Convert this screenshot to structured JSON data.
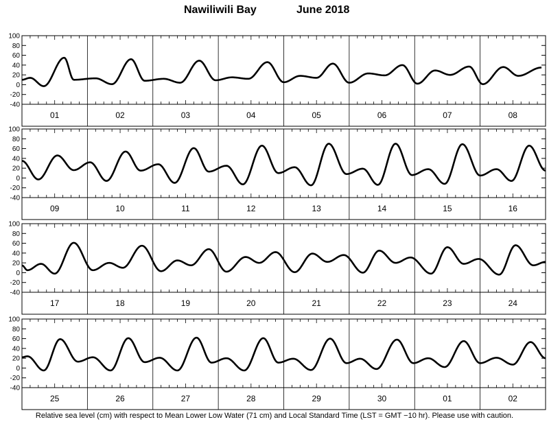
{
  "header": {
    "location": "Nawiliwili Bay",
    "month_year": "June   2018"
  },
  "footer": {
    "note": "Relative sea level (cm) with respect to Mean Lower Low Water (71 cm) and Local Standard Time (LST = GMT −10 hr). Please use with caution."
  },
  "chart_data": [
    {
      "type": "line",
      "title": "",
      "xlabel": "",
      "ylabel": "",
      "ylim": [
        -40,
        100
      ],
      "yticks": [
        -40,
        -20,
        0,
        20,
        40,
        60,
        80,
        100
      ],
      "grid": false,
      "day_labels": [
        "01",
        "02",
        "03",
        "04",
        "05",
        "06",
        "07",
        "08"
      ],
      "series": [
        {
          "x": [
            "01 00:00",
            "01 03:00",
            "01 08:00",
            "01 15:30",
            "01 19:00",
            "02 03:00",
            "02 09:00",
            "02 16:00",
            "02 21:00",
            "03 04:00",
            "03 10:00",
            "03 17:00",
            "03 23:00",
            "04 05:00",
            "04 11:00",
            "04 18:00",
            "05 00:00",
            "05 06:00",
            "05 12:00",
            "05 18:00",
            "06 00:00",
            "06 07:00",
            "06 13:00",
            "06 19:30",
            "07 01:00",
            "07 07:30",
            "07 13:00",
            "07 20:00",
            "08 01:00",
            "08 08:30",
            "08 14:00",
            "08 22:30"
          ],
          "y": [
            10,
            14,
            -3,
            55,
            10,
            13,
            1,
            52,
            8,
            12,
            4,
            49,
            9,
            15,
            12,
            46,
            5,
            18,
            14,
            43,
            4,
            23,
            19,
            40,
            2,
            29,
            20,
            37,
            1,
            36,
            18,
            35
          ]
        }
      ]
    },
    {
      "type": "line",
      "title": "",
      "xlabel": "",
      "ylabel": "",
      "ylim": [
        -40,
        100
      ],
      "yticks": [
        -40,
        -20,
        0,
        20,
        40,
        60,
        80,
        100
      ],
      "grid": false,
      "day_labels": [
        "09",
        "10",
        "11",
        "12",
        "13",
        "14",
        "15",
        "16"
      ],
      "series": [
        {
          "x": [
            "09 00:00",
            "09 06:00",
            "09 13:00",
            "09 19:00",
            "10 01:00",
            "10 07:00",
            "10 14:00",
            "10 19:30",
            "11 02:00",
            "11 08:00",
            "11 15:00",
            "11 20:30",
            "12 03:00",
            "12 09:00",
            "12 16:00",
            "12 22:00",
            "13 04:00",
            "13 10:00",
            "13 16:30",
            "13 23:00",
            "14 05:00",
            "14 10:30",
            "14 17:00",
            "14 23:00",
            "15 05:00",
            "15 11:00",
            "15 17:30",
            "16 00:00",
            "16 06:00",
            "16 11:30",
            "16 18:00",
            "16 23:59"
          ],
          "y": [
            35,
            -3,
            46,
            16,
            32,
            -6,
            54,
            15,
            28,
            -10,
            61,
            13,
            25,
            -13,
            66,
            10,
            22,
            -15,
            70,
            8,
            19,
            -14,
            70,
            6,
            18,
            -12,
            69,
            5,
            18,
            -6,
            66,
            15
          ]
        }
      ]
    },
    {
      "type": "line",
      "title": "",
      "xlabel": "",
      "ylabel": "",
      "ylim": [
        -40,
        100
      ],
      "yticks": [
        -40,
        -20,
        0,
        20,
        40,
        60,
        80,
        100
      ],
      "grid": false,
      "day_labels": [
        "17",
        "18",
        "19",
        "20",
        "21",
        "22",
        "23",
        "24"
      ],
      "series": [
        {
          "x": [
            "17 00:00",
            "17 02:00",
            "17 07:00",
            "17 12:00",
            "17 19:00",
            "18 02:00",
            "18 08:00",
            "18 13:00",
            "18 20:00",
            "19 03:00",
            "19 09:00",
            "19 14:00",
            "19 20:30",
            "20 03:00",
            "20 10:00",
            "20 15:00",
            "20 21:00",
            "21 04:00",
            "21 10:30",
            "21 16:00",
            "21 22:00",
            "22 05:00",
            "22 11:00",
            "22 17:00",
            "22 22:30",
            "23 06:00",
            "23 12:00",
            "23 18:00",
            "23 23:30",
            "24 07:00",
            "24 13:00",
            "24 19:30",
            "24 23:59"
          ],
          "y": [
            15,
            5,
            18,
            -2,
            61,
            5,
            20,
            10,
            55,
            3,
            25,
            15,
            48,
            2,
            32,
            20,
            42,
            1,
            39,
            22,
            36,
            0,
            45,
            20,
            31,
            -2,
            52,
            18,
            28,
            -4,
            56,
            15,
            22
          ]
        }
      ]
    },
    {
      "type": "line",
      "title": "",
      "xlabel": "",
      "ylabel": "",
      "ylim": [
        -40,
        100
      ],
      "yticks": [
        -40,
        -20,
        0,
        20,
        40,
        60,
        80,
        100
      ],
      "grid": false,
      "day_labels": [
        "25",
        "26",
        "27",
        "28",
        "29",
        "30",
        "01",
        "02"
      ],
      "series": [
        {
          "x": [
            "25 00:00",
            "25 02:00",
            "25 08:00",
            "25 14:00",
            "25 20:30",
            "26 02:00",
            "26 08:30",
            "26 15:00",
            "26 21:00",
            "27 02:30",
            "27 09:00",
            "27 16:00",
            "27 21:30",
            "28 03:00",
            "28 09:30",
            "28 16:30",
            "28 22:00",
            "29 03:30",
            "29 10:00",
            "29 17:00",
            "29 23:00",
            "30 04:00",
            "30 10:00",
            "30 17:30",
            "30 23:30",
            "01 05:00",
            "01 11:00",
            "01 18:00",
            "02 00:00",
            "02 06:00",
            "02 12:00",
            "02 18:30",
            "02 23:59"
          ],
          "y": [
            22,
            24,
            -5,
            59,
            13,
            22,
            -5,
            61,
            12,
            21,
            -5,
            62,
            11,
            20,
            -5,
            61,
            11,
            19,
            -4,
            60,
            10,
            19,
            -2,
            58,
            10,
            20,
            2,
            55,
            10,
            21,
            7,
            53,
            20
          ]
        }
      ]
    }
  ]
}
